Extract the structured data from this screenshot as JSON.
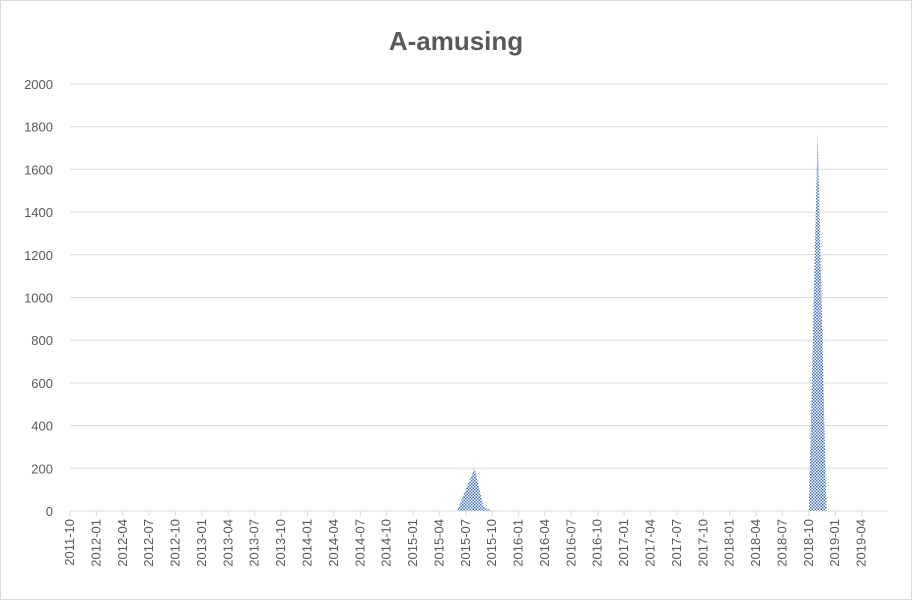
{
  "chart_data": {
    "type": "area",
    "title": "A-amusing",
    "xlabel": "",
    "ylabel": "",
    "ylim": [
      0,
      2000
    ],
    "y_ticks": [
      0,
      200,
      400,
      600,
      800,
      1000,
      1200,
      1400,
      1600,
      1800,
      2000
    ],
    "x_tick_labels": [
      "2011-10",
      "2012-01",
      "2012-04",
      "2012-07",
      "2012-10",
      "2013-01",
      "2013-04",
      "2013-07",
      "2013-10",
      "2014-01",
      "2014-04",
      "2014-07",
      "2014-10",
      "2015-01",
      "2015-04",
      "2015-07",
      "2015-10",
      "2016-01",
      "2016-04",
      "2016-07",
      "2016-10",
      "2017-01",
      "2017-04",
      "2017-07",
      "2017-10",
      "2018-01",
      "2018-04",
      "2018-07",
      "2018-10",
      "2019-01",
      "2019-04"
    ],
    "grid": true,
    "legend": "none",
    "series": [
      {
        "color": "#4472c4",
        "fill": "checkered",
        "points": [
          {
            "x": "2011-10",
            "y": 0
          },
          {
            "x": "2015-06",
            "y": 0
          },
          {
            "x": "2015-08",
            "y": 200
          },
          {
            "x": "2015-09",
            "y": 20
          },
          {
            "x": "2015-10",
            "y": 0
          },
          {
            "x": "2018-10",
            "y": 0
          },
          {
            "x": "2018-11",
            "y": 1780
          },
          {
            "x": "2018-12",
            "y": 0
          },
          {
            "x": "2019-06",
            "y": 0
          }
        ]
      }
    ]
  }
}
